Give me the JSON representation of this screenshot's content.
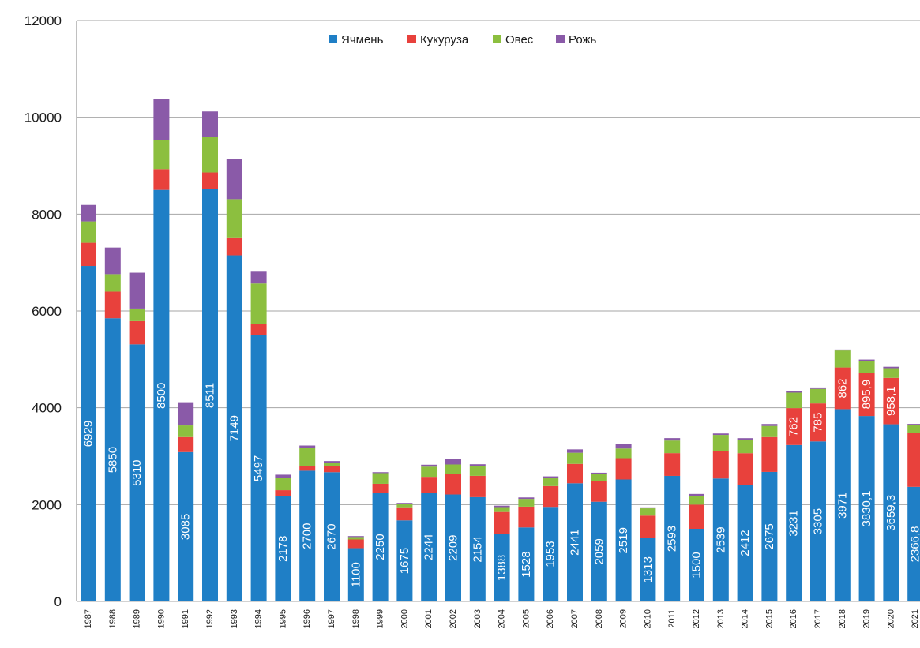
{
  "chart_data": {
    "type": "bar",
    "stacked": true,
    "title": "",
    "xlabel": "",
    "ylabel": "",
    "ylim": [
      0,
      12000
    ],
    "yticks": [
      0,
      2000,
      4000,
      6000,
      8000,
      10000,
      12000
    ],
    "grid": true,
    "legend_position": "top-center",
    "categories": [
      "1987",
      "1988",
      "1989",
      "1990",
      "1991",
      "1992",
      "1993",
      "1994",
      "1995",
      "1996",
      "1997",
      "1998",
      "1999",
      "2000",
      "2001",
      "2002",
      "2003",
      "2004",
      "2005",
      "2006",
      "2007",
      "2008",
      "2009",
      "2010",
      "2011",
      "2012",
      "2013",
      "2014",
      "2015",
      "2016",
      "2017",
      "2018",
      "2019",
      "2020",
      "2021"
    ],
    "series": [
      {
        "name": "Ячмень",
        "color": "#1f7fc6",
        "values": [
          6929,
          5850,
          5310,
          8500,
          3085,
          8511,
          7149,
          5497,
          2178,
          2700,
          2670,
          1100,
          2250,
          1675,
          2244,
          2209,
          2154,
          1388,
          1528,
          1953,
          2441,
          2059,
          2519,
          1313,
          2593,
          1500,
          2539,
          2412,
          2675,
          3231,
          3305,
          3971,
          3830.1,
          3659.3,
          2366.8
        ],
        "labels": [
          "6929",
          "5850",
          "5310",
          "8500",
          "3085",
          "8511",
          "7149",
          "5497",
          "2178",
          "2700",
          "2670",
          "1100",
          "2250",
          "1675",
          "2244",
          "2209",
          "2154",
          "1388",
          "1528",
          "1953",
          "2441",
          "2059",
          "2519",
          "1313",
          "2593",
          "1500",
          "2539",
          "2412",
          "2675",
          "3231",
          "3305",
          "3971",
          "3830,1",
          "3659,3",
          "2366,8"
        ]
      },
      {
        "name": "Кукуруза",
        "color": "#e8413c",
        "values": [
          480,
          550,
          480,
          430,
          310,
          350,
          370,
          230,
          120,
          100,
          120,
          180,
          180,
          270,
          330,
          420,
          440,
          460,
          430,
          430,
          400,
          420,
          440,
          460,
          470,
          500,
          560,
          650,
          720,
          762,
          785,
          862,
          895.9,
          958.1,
          1120
        ],
        "labels": [
          "",
          "",
          "",
          "",
          "",
          "",
          "",
          "",
          "",
          "",
          "",
          "",
          "",
          "",
          "",
          "",
          "",
          "",
          "",
          "",
          "",
          "",
          "",
          "",
          "",
          "",
          "",
          "",
          "",
          "762",
          "785",
          "862",
          "895,9",
          "958,1",
          ""
        ]
      },
      {
        "name": "Овес",
        "color": "#8cbf3f",
        "values": [
          440,
          360,
          260,
          600,
          240,
          740,
          790,
          840,
          260,
          370,
          70,
          50,
          220,
          70,
          210,
          200,
          200,
          100,
          160,
          160,
          230,
          150,
          200,
          150,
          260,
          180,
          340,
          270,
          230,
          320,
          300,
          350,
          240,
          200,
          160
        ],
        "labels": [
          "",
          "",
          "",
          "",
          "",
          "",
          "",
          "",
          "",
          "",
          "",
          "",
          "",
          "",
          "",
          "",
          "",
          "",
          "",
          "",
          "",
          "",
          "",
          "",
          "",
          "",
          "",
          "",
          "",
          "",
          "",
          "",
          "",
          "",
          ""
        ]
      },
      {
        "name": "Рожь",
        "color": "#8a5aa8",
        "values": [
          340,
          550,
          740,
          850,
          480,
          520,
          830,
          260,
          60,
          50,
          40,
          20,
          20,
          20,
          40,
          110,
          40,
          30,
          30,
          40,
          70,
          30,
          90,
          20,
          50,
          40,
          30,
          40,
          40,
          40,
          30,
          20,
          30,
          30,
          20
        ],
        "labels": [
          "",
          "",
          "",
          "",
          "",
          "",
          "",
          "",
          "",
          "",
          "",
          "",
          "",
          "",
          "",
          "",
          "",
          "",
          "",
          "",
          "",
          "",
          "",
          "",
          "",
          "",
          "",
          "",
          "",
          "",
          "",
          "",
          "",
          "",
          ""
        ]
      }
    ]
  }
}
